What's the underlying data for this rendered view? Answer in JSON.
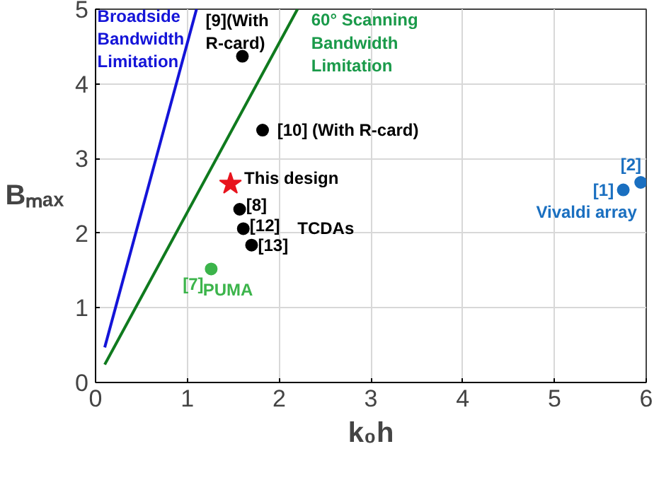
{
  "chart_data": {
    "type": "scatter",
    "xlabel": "k₀h",
    "ylabel": "Bₘₐₓ",
    "xlim": [
      0,
      6
    ],
    "ylim": [
      0,
      5
    ],
    "xticks": [
      0,
      1,
      2,
      3,
      4,
      5,
      6
    ],
    "yticks": [
      0,
      1,
      2,
      3,
      4,
      5
    ],
    "grid": true,
    "series": [
      {
        "type": "line",
        "color": "#1414d8",
        "x": [
          0.1,
          1.1
        ],
        "values": [
          0.47,
          5
        ]
      },
      {
        "type": "line",
        "color": "#0f7a1e",
        "x": [
          0.1,
          2.2
        ],
        "values": [
          0.24,
          5
        ]
      },
      {
        "color": "#000000",
        "marker": "circle",
        "x": [
          1.6,
          1.82,
          1.57,
          1.61,
          1.7
        ],
        "values": [
          4.37,
          3.38,
          2.32,
          2.06,
          1.84
        ]
      },
      {
        "color": "#e8141e",
        "marker": "star",
        "x": [
          1.47
        ],
        "values": [
          2.66
        ]
      },
      {
        "color": "#3cb44b",
        "marker": "circle",
        "x": [
          1.26
        ],
        "values": [
          1.52
        ]
      },
      {
        "color": "#1a6fc0",
        "marker": "circle",
        "x": [
          5.75,
          5.94
        ],
        "values": [
          2.58,
          2.68
        ]
      }
    ],
    "annotations": [
      "Broadside\nBandwidth\nLimitation",
      "60° Scanning\nBandwidth\nLimitation",
      "[9](With\nR-card)",
      "[10] (With R-card)",
      "This design",
      "[8]",
      "[12]",
      "[13]",
      "TCDAs",
      "[7]",
      "PUMA",
      "[1]",
      "[2]",
      "Vivaldi array"
    ]
  }
}
